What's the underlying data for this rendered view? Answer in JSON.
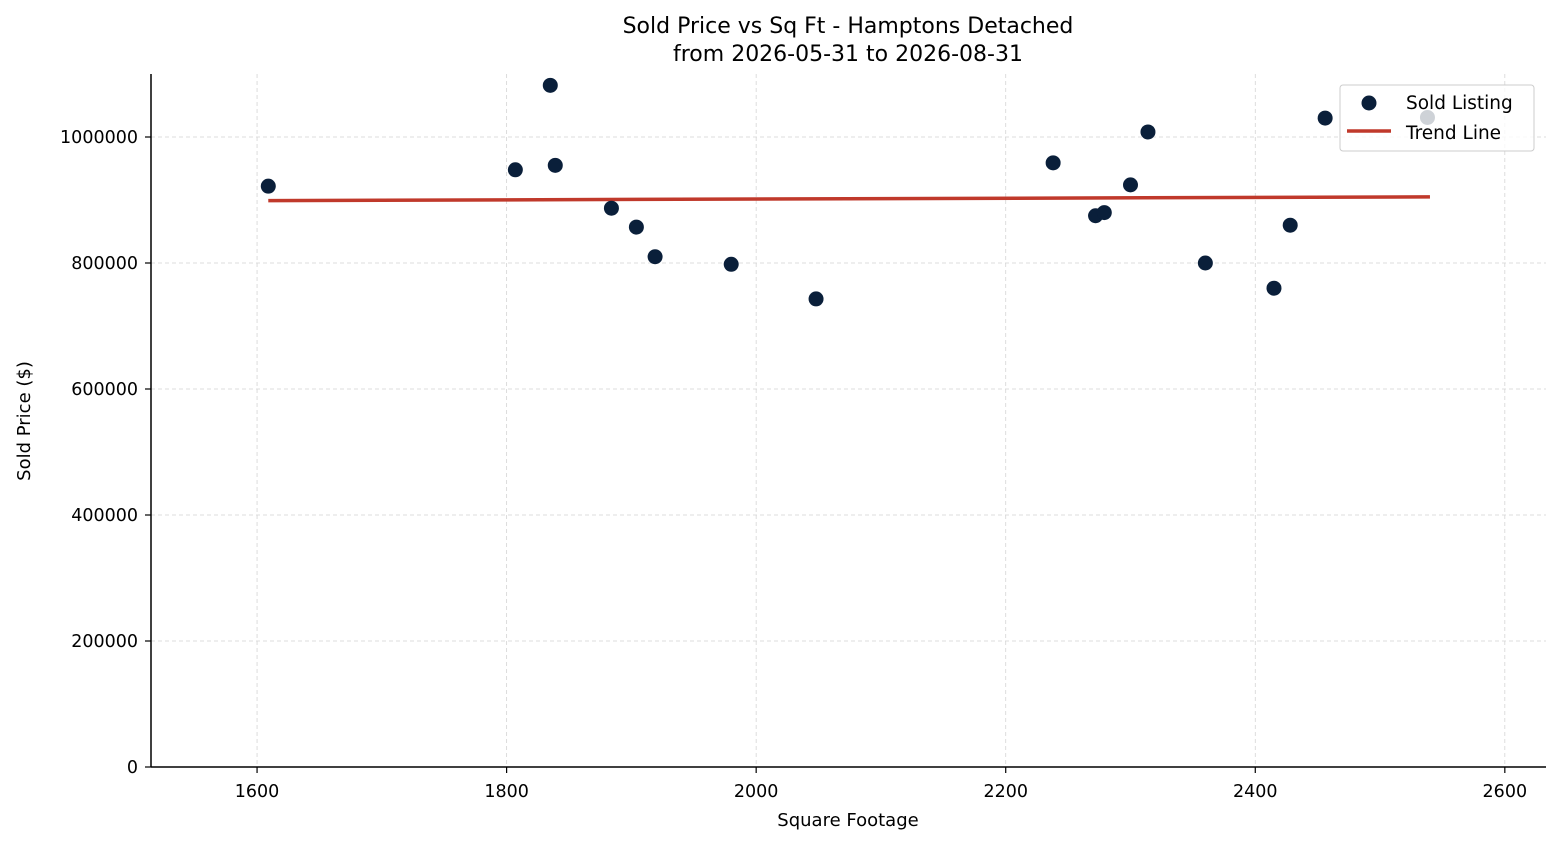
{
  "chart_data": {
    "type": "scatter",
    "title": "Sold Price vs Sq Ft - Hamptons Detached",
    "subtitle": "from 2026-05-31 to 2026-08-31",
    "xlabel": "Square Footage",
    "ylabel": "Sold Price ($)",
    "xlim": [
      1515,
      2633
    ],
    "ylim": [
      0,
      1100000
    ],
    "xticks": [
      1600,
      1800,
      2000,
      2200,
      2400,
      2600
    ],
    "yticks": [
      0,
      200000,
      400000,
      600000,
      800000,
      1000000
    ],
    "grid": true,
    "legend_position": "top-right",
    "series": [
      {
        "name": "Sold Listing",
        "kind": "scatter",
        "color": "#0a1f3a",
        "points": [
          {
            "x": 1609,
            "y": 922000
          },
          {
            "x": 1807,
            "y": 948000
          },
          {
            "x": 1835,
            "y": 1082000
          },
          {
            "x": 1839,
            "y": 955000
          },
          {
            "x": 1884,
            "y": 887000
          },
          {
            "x": 1904,
            "y": 857000
          },
          {
            "x": 1919,
            "y": 810000
          },
          {
            "x": 1980,
            "y": 798000
          },
          {
            "x": 2048,
            "y": 743000
          },
          {
            "x": 2238,
            "y": 959000
          },
          {
            "x": 2272,
            "y": 875000
          },
          {
            "x": 2279,
            "y": 880000
          },
          {
            "x": 2300,
            "y": 924000
          },
          {
            "x": 2314,
            "y": 1008000
          },
          {
            "x": 2360,
            "y": 800000
          },
          {
            "x": 2415,
            "y": 760000
          },
          {
            "x": 2428,
            "y": 860000
          },
          {
            "x": 2456,
            "y": 1030000
          },
          {
            "x": 2538,
            "y": 1031000
          }
        ]
      },
      {
        "name": "Trend Line",
        "kind": "line",
        "color": "#c0392b",
        "points": [
          {
            "x": 1609,
            "y": 899000
          },
          {
            "x": 2540,
            "y": 905000
          }
        ]
      }
    ]
  }
}
